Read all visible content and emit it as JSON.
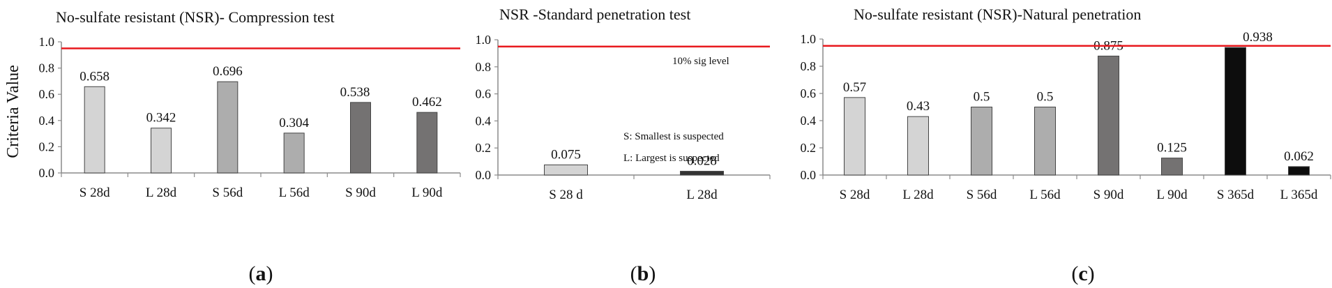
{
  "ylabel": "Criteria Value",
  "chart_data": [
    {
      "type": "bar",
      "panel_label": "a",
      "title": "No-sulfate resistant (NSR)- Compression test",
      "ylabel": "Criteria Value",
      "ylim": [
        0,
        1.0
      ],
      "yticks": [
        "0.0",
        "0.2",
        "0.4",
        "0.6",
        "0.8",
        "1.0"
      ],
      "categories": [
        "S 28d",
        "L 28d",
        "S  56d",
        "L 56d",
        "S 90d",
        "L 90d"
      ],
      "values": [
        0.658,
        0.342,
        0.696,
        0.304,
        0.538,
        0.462
      ],
      "value_labels": [
        "0.658",
        "0.342",
        "0.696",
        "0.304",
        "0.538",
        "0.462"
      ],
      "bar_colors": [
        "#d4d4d4",
        "#d4d4d4",
        "#adadad",
        "#adadad",
        "#747272",
        "#747272"
      ],
      "reference_line": 0.95,
      "reference_color": "#e8191e",
      "notes": []
    },
    {
      "type": "bar",
      "panel_label": "b",
      "title": "NSR -Standard penetration test",
      "ylim": [
        0,
        1.0
      ],
      "yticks": [
        "0.0",
        "0.2",
        "0.4",
        "0.6",
        "0.8",
        "1.0"
      ],
      "categories": [
        "S 28 d",
        "L 28d"
      ],
      "values": [
        0.075,
        0.028
      ],
      "value_labels": [
        "0.075",
        "0.028"
      ],
      "bar_colors": [
        "#d4d4d4",
        "#333333"
      ],
      "reference_line": 0.95,
      "reference_color": "#e8191e",
      "notes": [
        "10% sig level",
        "S: Smallest is suspected",
        "L: Largest is suspected"
      ]
    },
    {
      "type": "bar",
      "panel_label": "c",
      "title": "No-sulfate resistant (NSR)-Natural penetration",
      "ylim": [
        0,
        1.0
      ],
      "yticks": [
        "0.0",
        "0.2",
        "0.4",
        "0.6",
        "0.8",
        "1.0"
      ],
      "categories": [
        "S 28d",
        "L 28d",
        "S 56d",
        "L 56d",
        "S 90d",
        "L 90d",
        "S 365d",
        "L 365d"
      ],
      "values": [
        0.57,
        0.43,
        0.5,
        0.5,
        0.875,
        0.125,
        0.938,
        0.062
      ],
      "value_labels": [
        "0.57",
        "0.43",
        "0.5",
        "0.5",
        "0.875",
        "0.125",
        "0.938",
        "0.062"
      ],
      "bar_colors": [
        "#d4d4d4",
        "#d4d4d4",
        "#adadad",
        "#adadad",
        "#747272",
        "#747272",
        "#0d0d0d",
        "#0d0d0d"
      ],
      "reference_line": 0.95,
      "reference_color": "#e8191e",
      "notes": []
    }
  ]
}
